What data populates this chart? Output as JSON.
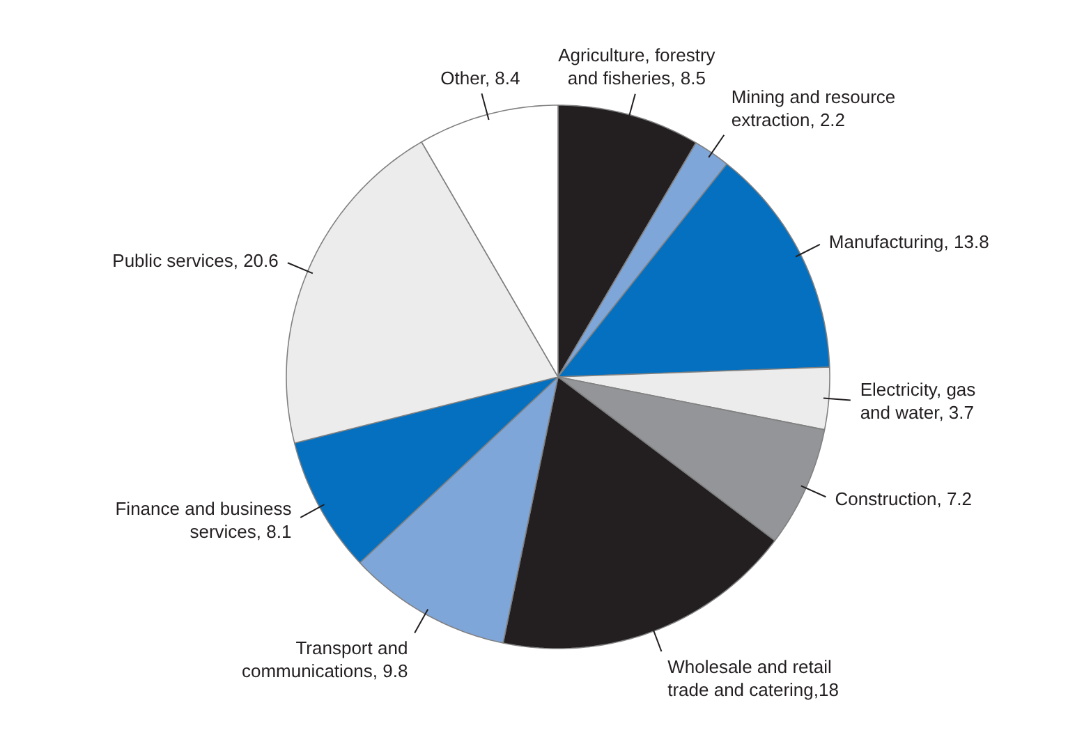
{
  "chart_data": {
    "type": "pie",
    "categories": [
      "Agriculture, forestry\nand fisheries, 8.5",
      "Mining and resource\nextraction, 2.2",
      "Manufacturing, 13.8",
      "Electricity, gas\nand water, 3.7",
      "Construction, 7.2",
      "Wholesale and retail\ntrade and catering,18",
      "Transport and\ncommunications, 9.8",
      "Finance and business\nservices, 8.1",
      "Public services, 20.6",
      "Other, 8.4"
    ],
    "values": [
      8.5,
      2.2,
      13.8,
      3.7,
      7.2,
      18,
      9.8,
      8.1,
      20.6,
      8.4
    ],
    "colors": [
      "#231f20",
      "#7fa6d9",
      "#0570bf",
      "#ececec",
      "#939598",
      "#231f20",
      "#7fa6d9",
      "#0570bf",
      "#ececec",
      "#ffffff"
    ]
  }
}
